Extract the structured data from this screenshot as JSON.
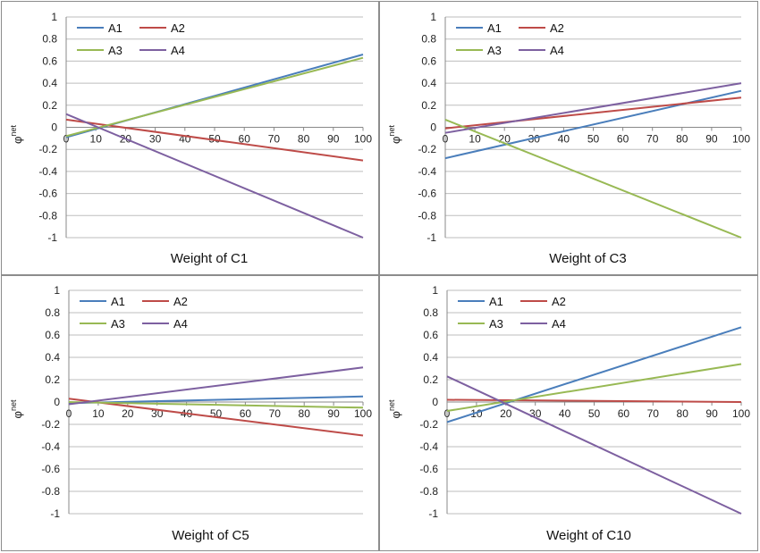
{
  "series_colors": {
    "A1": "#4a7ebb",
    "A2": "#be4b48",
    "A3": "#98b954",
    "A4": "#7d60a0"
  },
  "chart_data": [
    {
      "type": "line",
      "xlabel": "Weight of C1",
      "ylabel": "φnet",
      "ylabel_main": "φ",
      "ylabel_sup": "net",
      "xlim": [
        0,
        100
      ],
      "ylim": [
        -1,
        1
      ],
      "xticks": [
        "0",
        "10",
        "20",
        "30",
        "40",
        "50",
        "60",
        "70",
        "80",
        "90",
        "100"
      ],
      "yticks": [
        "1",
        "0.8",
        "0.6",
        "0.4",
        "0.2",
        "0",
        "-0.2",
        "-0.4",
        "-0.6",
        "-0.8",
        "-1"
      ],
      "grid": true,
      "legend_position": "top-left",
      "x": [
        0,
        100
      ],
      "series": [
        {
          "name": "A1",
          "values": [
            -0.09,
            0.66
          ]
        },
        {
          "name": "A2",
          "values": [
            0.07,
            -0.3
          ]
        },
        {
          "name": "A3",
          "values": [
            -0.08,
            0.63
          ]
        },
        {
          "name": "A4",
          "values": [
            0.12,
            -1.0
          ]
        }
      ]
    },
    {
      "type": "line",
      "xlabel": "Weight of C3",
      "ylabel": "φnet",
      "ylabel_main": "φ",
      "ylabel_sup": "net",
      "xlim": [
        0,
        100
      ],
      "ylim": [
        -1,
        1
      ],
      "xticks": [
        "0",
        "10",
        "20",
        "30",
        "40",
        "50",
        "60",
        "70",
        "80",
        "90",
        "100"
      ],
      "yticks": [
        "1",
        "0.8",
        "0.6",
        "0.4",
        "0.2",
        "0",
        "-0.2",
        "-0.4",
        "-0.6",
        "-0.8",
        "-1"
      ],
      "grid": true,
      "legend_position": "top-left",
      "x": [
        0,
        100
      ],
      "series": [
        {
          "name": "A1",
          "values": [
            -0.28,
            0.33
          ]
        },
        {
          "name": "A2",
          "values": [
            -0.01,
            0.27
          ]
        },
        {
          "name": "A3",
          "values": [
            0.07,
            -1.0
          ]
        },
        {
          "name": "A4",
          "values": [
            -0.05,
            0.4
          ]
        }
      ]
    },
    {
      "type": "line",
      "xlabel": "Weight of C5",
      "ylabel": "φnet",
      "ylabel_main": "φ",
      "ylabel_sup": "net",
      "xlim": [
        0,
        100
      ],
      "ylim": [
        -1,
        1
      ],
      "xticks": [
        "0",
        "10",
        "20",
        "30",
        "40",
        "50",
        "60",
        "70",
        "80",
        "90",
        "100"
      ],
      "yticks": [
        "1",
        "0.8",
        "0.6",
        "0.4",
        "0.2",
        "0",
        "-0.2",
        "-0.4",
        "-0.6",
        "-0.8",
        "-1"
      ],
      "grid": true,
      "legend_position": "top-left",
      "x": [
        0,
        100
      ],
      "series": [
        {
          "name": "A1",
          "values": [
            -0.01,
            0.05
          ]
        },
        {
          "name": "A2",
          "values": [
            0.03,
            -0.3
          ]
        },
        {
          "name": "A3",
          "values": [
            0.0,
            -0.05
          ]
        },
        {
          "name": "A4",
          "values": [
            -0.02,
            0.31
          ]
        }
      ]
    },
    {
      "type": "line",
      "xlabel": "Weight of C10",
      "ylabel": "φnet",
      "ylabel_main": "φ",
      "ylabel_sup": "net",
      "xlim": [
        0,
        100
      ],
      "ylim": [
        -1,
        1
      ],
      "xticks": [
        "0",
        "10",
        "20",
        "30",
        "40",
        "50",
        "60",
        "70",
        "80",
        "90",
        "100"
      ],
      "yticks": [
        "1",
        "0.8",
        "0.6",
        "0.4",
        "0.2",
        "0",
        "-0.2",
        "-0.4",
        "-0.6",
        "-0.8",
        "-1"
      ],
      "grid": true,
      "legend_position": "top-left",
      "x": [
        0,
        100
      ],
      "series": [
        {
          "name": "A1",
          "values": [
            -0.18,
            0.67
          ]
        },
        {
          "name": "A2",
          "values": [
            0.02,
            0.0
          ]
        },
        {
          "name": "A3",
          "values": [
            -0.08,
            0.34
          ]
        },
        {
          "name": "A4",
          "values": [
            0.23,
            -1.0
          ]
        }
      ]
    }
  ]
}
